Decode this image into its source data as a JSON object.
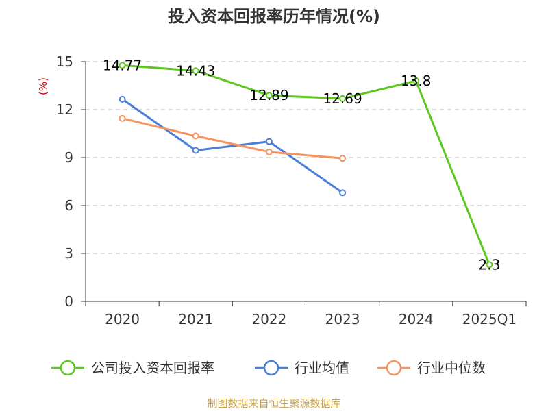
{
  "chart_data": {
    "type": "line",
    "title": "投入资本回报率历年情况(%)",
    "ylabel": "(%)",
    "xlabel": "",
    "categories": [
      "2020",
      "2021",
      "2022",
      "2023",
      "2024",
      "2025Q1"
    ],
    "ylim": [
      0,
      15
    ],
    "yticks": [
      0,
      3,
      6,
      9,
      12,
      15
    ],
    "grid": true,
    "legend_position": "bottom",
    "series": [
      {
        "name": "公司投入资本回报率",
        "color": "#5cc71f",
        "values": [
          14.77,
          14.43,
          12.89,
          12.69,
          13.8,
          2.3
        ],
        "labels": [
          "14.77",
          "14.43",
          "12.89",
          "12.69",
          "13.8",
          "2.3"
        ]
      },
      {
        "name": "行业均值",
        "color": "#4a7ed8",
        "values": [
          12.65,
          9.45,
          10.0,
          6.8,
          null,
          null
        ],
        "labels": []
      },
      {
        "name": "行业中位数",
        "color": "#f59460",
        "values": [
          11.45,
          10.35,
          9.35,
          8.95,
          null,
          null
        ],
        "labels": []
      }
    ]
  },
  "source": "制图数据来自恒生聚源数据库"
}
